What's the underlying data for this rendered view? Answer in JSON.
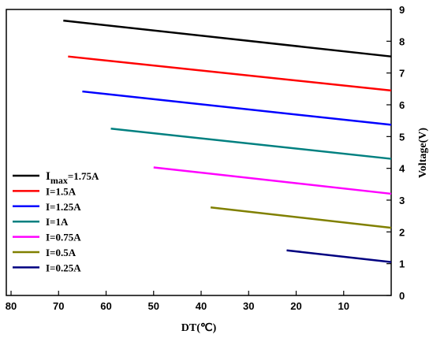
{
  "chart_data": {
    "type": "line",
    "title": "",
    "xlabel": "DT(℃)",
    "ylabel": "Voltage(V)",
    "xlim": [
      81,
      0
    ],
    "ylim": [
      0,
      9
    ],
    "x_reversed": true,
    "y_axis_side": "right",
    "xticks": [
      "80",
      "70",
      "60",
      "50",
      "40",
      "30",
      "20",
      "10"
    ],
    "yticks": [
      "0",
      "1",
      "2",
      "3",
      "4",
      "5",
      "6",
      "7",
      "8",
      "9"
    ],
    "legend_position": "bottom-left",
    "series": [
      {
        "name": "I",
        "sub": "max",
        "rest": "=1.75A",
        "color": "#000000",
        "x": [
          69,
          0
        ],
        "y": [
          8.65,
          7.52
        ]
      },
      {
        "name": "I=1.5A",
        "color": "#ff0000",
        "x": [
          68,
          0
        ],
        "y": [
          7.52,
          6.45
        ]
      },
      {
        "name": "I=1.25A",
        "color": "#0000ff",
        "x": [
          65,
          0
        ],
        "y": [
          6.42,
          5.37
        ]
      },
      {
        "name": "I=1A",
        "color": "#008080",
        "x": [
          59,
          0
        ],
        "y": [
          5.25,
          4.3
        ]
      },
      {
        "name": "I=0.75A",
        "color": "#ff00ff",
        "x": [
          50,
          0
        ],
        "y": [
          4.03,
          3.2
        ]
      },
      {
        "name": "I=0.5A",
        "color": "#808000",
        "x": [
          38,
          0
        ],
        "y": [
          2.77,
          2.13
        ]
      },
      {
        "name": "I=0.25A",
        "color": "#000080",
        "x": [
          22,
          0
        ],
        "y": [
          1.42,
          1.05
        ]
      }
    ]
  }
}
